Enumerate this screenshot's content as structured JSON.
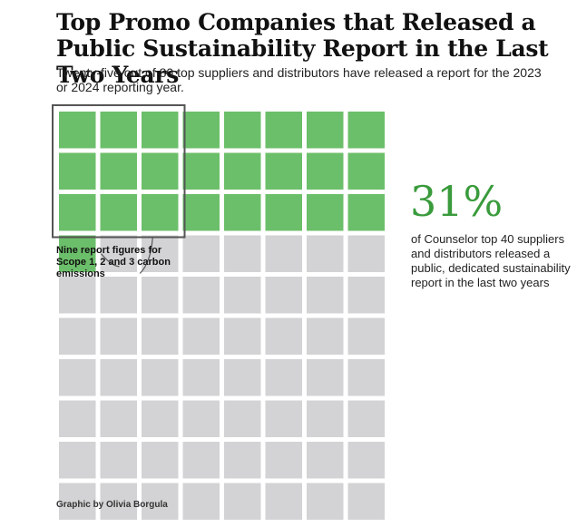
{
  "chart_data": {
    "type": "waffle",
    "title": "Top Promo Companies that Released a Public Sustainability Report in the Last Two Years",
    "subtitle": "Twenty-five out of 80 top suppliers and distributors have released a report for the 2023 or 2024 reporting year.",
    "total": 80,
    "highlighted": 25,
    "columns": 8,
    "rows": 10,
    "highlight_group": {
      "count": 9,
      "columns": 3,
      "rows": 3
    },
    "stat": {
      "value": "31%",
      "description": "of Counselor top 40 suppliers and distributors released a public, dedicated sustainability report in the last two years"
    },
    "annotation": "Nine report figures for Scope 1, 2 and 3 carbon emissions",
    "credit": "Graphic by Olivia Borgula",
    "colors": {
      "released": "#6cbf6a",
      "not_released": "#d3d3d5",
      "highlight_box": "#555555",
      "stat": "#3a9b3c"
    }
  }
}
